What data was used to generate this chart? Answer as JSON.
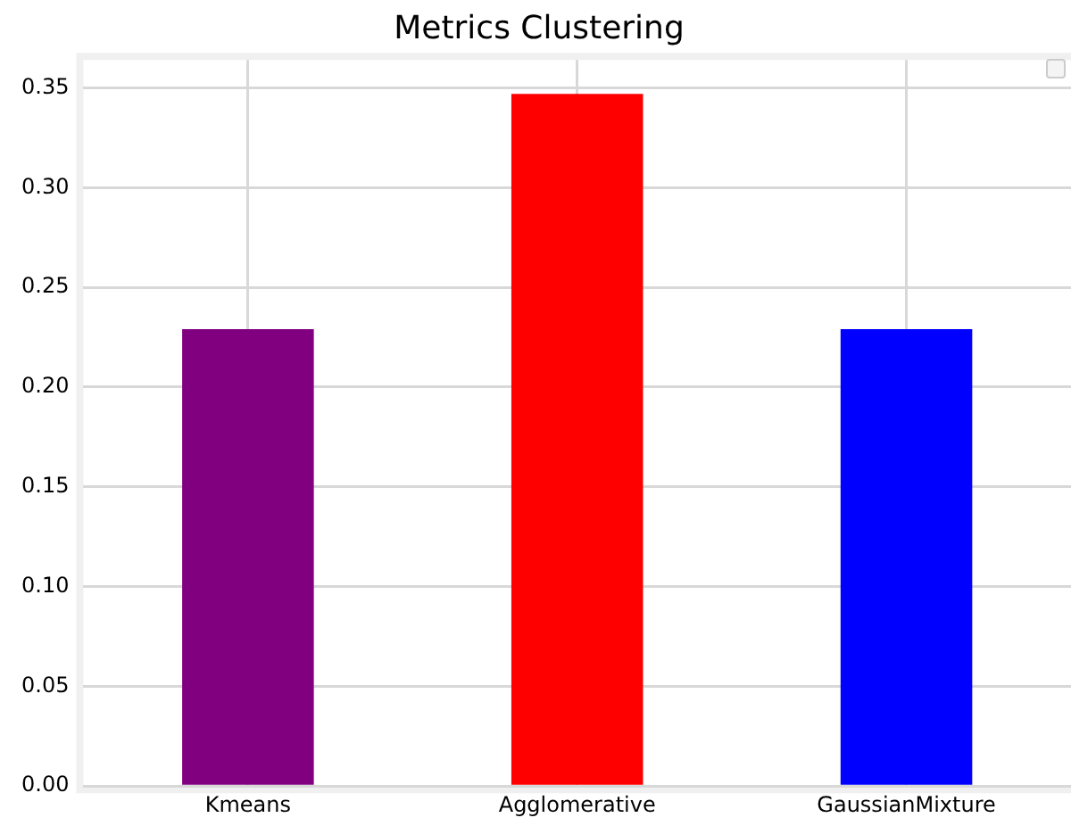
{
  "chart_data": {
    "type": "bar",
    "title": "Metrics Clustering",
    "categories": [
      "Kmeans",
      "Agglomerative",
      "GaussianMixture"
    ],
    "values": [
      0.229,
      0.347,
      0.229
    ],
    "colors": [
      "#800080",
      "#ff0000",
      "#0000ff"
    ],
    "ylim": [
      0,
      0.364
    ],
    "yticks": [
      {
        "value": 0,
        "label": "0.00"
      },
      0.05,
      {
        "value": 0.1,
        "label": "0.10"
      },
      0.15,
      {
        "value": 0.2,
        "label": "0.20"
      },
      0.25,
      {
        "value": 0.3,
        "label": "0.30"
      },
      0.35
    ],
    "grid": true
  }
}
